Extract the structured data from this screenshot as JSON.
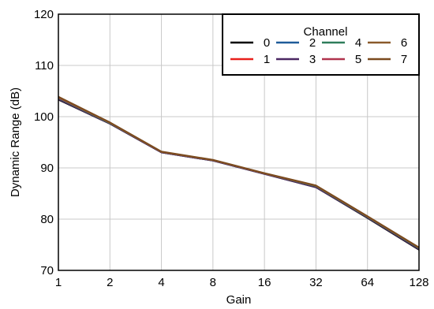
{
  "chart_data": {
    "type": "line",
    "title": "",
    "xlabel": "Gain",
    "ylabel": "Dynamic Range (dB)",
    "x_scale": "log2",
    "categories": [
      "1",
      "2",
      "4",
      "8",
      "16",
      "32",
      "64",
      "128"
    ],
    "ylim": [
      70,
      120
    ],
    "yticks": [
      "70",
      "80",
      "90",
      "100",
      "110",
      "120"
    ],
    "grid": true,
    "legend": {
      "title": "Channel",
      "placement": "top-right"
    },
    "series": [
      {
        "name": "0",
        "color": "#000000",
        "values": [
          103.3,
          98.6,
          93.0,
          91.4,
          88.8,
          86.2,
          80.2,
          74.0
        ]
      },
      {
        "name": "1",
        "color": "#e8201c",
        "values": [
          103.7,
          98.8,
          93.1,
          91.5,
          88.9,
          86.4,
          80.4,
          74.3
        ]
      },
      {
        "name": "2",
        "color": "#1f5c99",
        "values": [
          103.5,
          98.7,
          93.0,
          91.4,
          88.8,
          86.3,
          80.3,
          74.2
        ]
      },
      {
        "name": "3",
        "color": "#4b2762",
        "values": [
          103.4,
          98.6,
          93.0,
          91.4,
          88.8,
          86.2,
          80.3,
          74.1
        ]
      },
      {
        "name": "4",
        "color": "#2f7d5b",
        "values": [
          103.6,
          98.7,
          93.1,
          91.5,
          88.9,
          86.4,
          80.4,
          74.3
        ]
      },
      {
        "name": "5",
        "color": "#b0344d",
        "values": [
          103.7,
          98.8,
          93.1,
          91.5,
          88.9,
          86.5,
          80.5,
          74.4
        ]
      },
      {
        "name": "6",
        "color": "#8a5a2b",
        "values": [
          103.8,
          98.8,
          93.1,
          91.5,
          88.9,
          86.5,
          80.5,
          74.4
        ]
      },
      {
        "name": "7",
        "color": "#7a4a1e",
        "values": [
          103.9,
          98.9,
          93.2,
          91.6,
          89.0,
          86.6,
          80.6,
          74.5
        ]
      }
    ]
  }
}
